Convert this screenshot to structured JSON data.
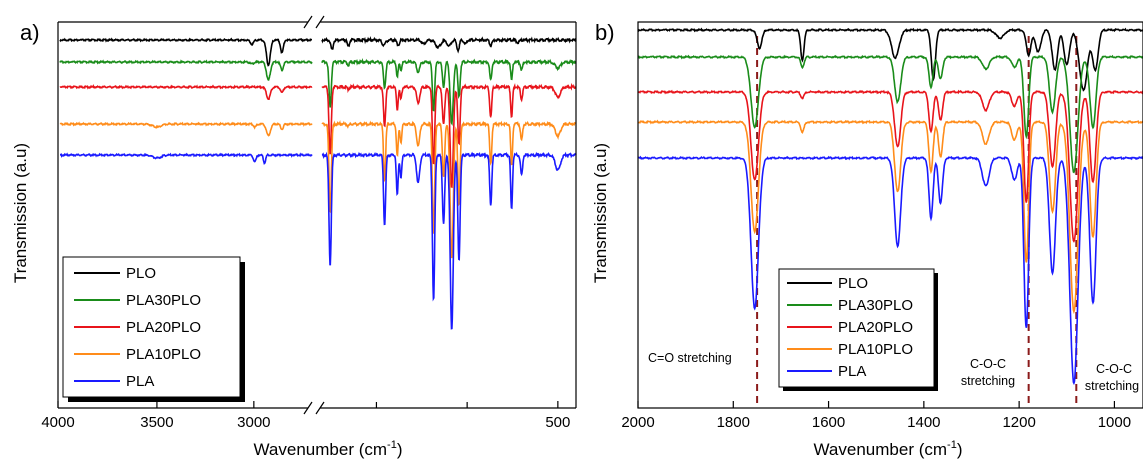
{
  "chart_data": [
    {
      "type": "line",
      "panel_label": "a)",
      "xlabel": "Wavenumber (cm",
      "xlabel_sup": "-1",
      "xlabel_close": ")",
      "ylabel": "Transmission (a.u)",
      "xlim": [
        4000,
        400
      ],
      "axis_break": [
        2700,
        1800
      ],
      "xticks": [
        4000,
        3500,
        3000,
        500
      ],
      "xtick_labels": [
        "4000",
        "3500",
        "3000",
        "500"
      ],
      "minor_ticks_right": [
        1500,
        1000
      ],
      "yticks": "none",
      "legend_position": "bottom-left",
      "series_colors": {
        "PLO": "#000000",
        "PLA30PLO": "#1a8c1a",
        "PLA20PLO": "#e8141b",
        "PLA10PLO": "#ff8c1a",
        "PLA": "#1a1aff"
      },
      "series": [
        {
          "name": "PLO",
          "offset": 0,
          "bands": [
            [
              3010,
              4,
              12
            ],
            [
              2925,
              25,
              14
            ],
            [
              2855,
              13,
              10
            ],
            [
              1745,
              10,
              9
            ],
            [
              1655,
              7,
              8
            ],
            [
              1460,
              5,
              14
            ],
            [
              1380,
              5,
              10
            ],
            [
              1240,
              4,
              15
            ],
            [
              1160,
              7,
              20
            ],
            [
              1100,
              6,
              15
            ],
            [
              1050,
              10,
              10
            ],
            [
              1010,
              4,
              10
            ],
            [
              870,
              5,
              10
            ],
            [
              720,
              3,
              10
            ]
          ]
        },
        {
          "name": "PLA30PLO",
          "offset": 22,
          "bands": [
            [
              3010,
              2,
              12
            ],
            [
              2925,
              18,
              14
            ],
            [
              2855,
              8,
              10
            ],
            [
              1755,
              45,
              9
            ],
            [
              1655,
              3,
              8
            ],
            [
              1455,
              25,
              9
            ],
            [
              1385,
              14,
              7
            ],
            [
              1365,
              8,
              7
            ],
            [
              1270,
              10,
              12
            ],
            [
              1185,
              48,
              9
            ],
            [
              1130,
              25,
              9
            ],
            [
              1085,
              62,
              12
            ],
            [
              1045,
              35,
              9
            ],
            [
              870,
              18,
              8
            ],
            [
              755,
              18,
              7
            ],
            [
              700,
              8,
              8
            ],
            [
              500,
              6,
              20
            ]
          ]
        },
        {
          "name": "PLA20PLO",
          "offset": 47,
          "bands": [
            [
              2925,
              12,
              14
            ],
            [
              2855,
              6,
              10
            ],
            [
              1755,
              68,
              9
            ],
            [
              1655,
              2,
              8
            ],
            [
              1455,
              40,
              8
            ],
            [
              1385,
              22,
              7
            ],
            [
              1365,
              12,
              7
            ],
            [
              1270,
              16,
              12
            ],
            [
              1185,
              78,
              9
            ],
            [
              1130,
              38,
              9
            ],
            [
              1085,
              100,
              12
            ],
            [
              1045,
              58,
              9
            ],
            [
              870,
              30,
              8
            ],
            [
              755,
              30,
              7
            ],
            [
              700,
              12,
              8
            ],
            [
              500,
              10,
              20
            ]
          ]
        },
        {
          "name": "PLA10PLO",
          "offset": 84,
          "bands": [
            [
              3500,
              3,
              30
            ],
            [
              2995,
              3,
              10
            ],
            [
              2925,
              12,
              14
            ],
            [
              2855,
              5,
              10
            ],
            [
              1755,
              88,
              9
            ],
            [
              1655,
              2,
              8
            ],
            [
              1455,
              56,
              8
            ],
            [
              1385,
              32,
              7
            ],
            [
              1365,
              18,
              7
            ],
            [
              1270,
              22,
              12
            ],
            [
              1185,
              110,
              9
            ],
            [
              1130,
              52,
              9
            ],
            [
              1085,
              135,
              12
            ],
            [
              1045,
              80,
              9
            ],
            [
              870,
              40,
              8
            ],
            [
              755,
              42,
              7
            ],
            [
              700,
              16,
              8
            ],
            [
              500,
              12,
              20
            ]
          ]
        },
        {
          "name": "PLA",
          "offset": 115,
          "bands": [
            [
              3500,
              3,
              30
            ],
            [
              2995,
              7,
              10
            ],
            [
              2945,
              8,
              8
            ],
            [
              1755,
              110,
              9
            ],
            [
              1455,
              70,
              8
            ],
            [
              1385,
              40,
              7
            ],
            [
              1365,
              22,
              7
            ],
            [
              1270,
              28,
              12
            ],
            [
              1185,
              145,
              9
            ],
            [
              1130,
              68,
              9
            ],
            [
              1085,
              175,
              12
            ],
            [
              1045,
              105,
              9
            ],
            [
              870,
              50,
              8
            ],
            [
              755,
              55,
              7
            ],
            [
              700,
              20,
              8
            ],
            [
              500,
              15,
              20
            ]
          ]
        }
      ]
    },
    {
      "type": "line",
      "panel_label": "b)",
      "xlabel": "Wavenumber (cm",
      "xlabel_sup": "-1",
      "xlabel_close": ")",
      "ylabel": "Transmission (a.u)",
      "xlim": [
        2000,
        940
      ],
      "xticks": [
        2000,
        1800,
        1600,
        1400,
        1200,
        1000
      ],
      "xtick_labels": [
        "2000",
        "1800",
        "1600",
        "1400",
        "1200",
        "1000"
      ],
      "yticks": "none",
      "legend_position": "bottom-left",
      "series_colors": {
        "PLO": "#000000",
        "PLA30PLO": "#1a8c1a",
        "PLA20PLO": "#e8141b",
        "PLA10PLO": "#ff8c1a",
        "PLA": "#1a1aff"
      },
      "reference_lines": [
        1750,
        1180,
        1080
      ],
      "reference_line_color": "#8b1a1a",
      "annotations": [
        {
          "text": "C=O stretching",
          "x": 1805,
          "y_pos": "bottom"
        },
        {
          "text": "C-O-C",
          "x": 1220,
          "y_pos": "bottom"
        },
        {
          "text": "stretching",
          "x": 1220,
          "y_pos": "bottom"
        },
        {
          "text": "C-O-C",
          "x": 1020,
          "y_pos": "bottom"
        },
        {
          "text": "stretching",
          "x": 1020,
          "y_pos": "bottom"
        }
      ],
      "series": [
        {
          "name": "PLO",
          "offset": 0,
          "bands": [
            [
              1745,
              18,
              7
            ],
            [
              1655,
              30,
              5
            ],
            [
              1460,
              28,
              11
            ],
            [
              1380,
              50,
              6
            ],
            [
              1240,
              8,
              12
            ],
            [
              1180,
              25,
              7
            ],
            [
              1160,
              22,
              8
            ],
            [
              1125,
              40,
              8
            ],
            [
              1100,
              35,
              8
            ],
            [
              1065,
              60,
              12
            ],
            [
              1040,
              40,
              8
            ]
          ]
        },
        {
          "name": "PLA30PLO",
          "offset": 27,
          "bands": [
            [
              1755,
              70,
              11
            ],
            [
              1655,
              10,
              5
            ],
            [
              1455,
              45,
              9
            ],
            [
              1385,
              30,
              6
            ],
            [
              1365,
              22,
              6
            ],
            [
              1270,
              12,
              10
            ],
            [
              1210,
              10,
              8
            ],
            [
              1185,
              80,
              7
            ],
            [
              1130,
              55,
              9
            ],
            [
              1085,
              115,
              12
            ],
            [
              1045,
              70,
              9
            ]
          ]
        },
        {
          "name": "PLA20PLO",
          "offset": 62,
          "bands": [
            [
              1755,
              88,
              11
            ],
            [
              1655,
              6,
              5
            ],
            [
              1455,
              55,
              9
            ],
            [
              1385,
              40,
              6
            ],
            [
              1365,
              28,
              6
            ],
            [
              1270,
              18,
              10
            ],
            [
              1210,
              14,
              8
            ],
            [
              1185,
              110,
              7
            ],
            [
              1130,
              75,
              9
            ],
            [
              1085,
              150,
              12
            ],
            [
              1045,
              90,
              9
            ]
          ]
        },
        {
          "name": "PLA10PLO",
          "offset": 92,
          "bands": [
            [
              1755,
              110,
              11
            ],
            [
              1655,
              10,
              5
            ],
            [
              1455,
              70,
              9
            ],
            [
              1385,
              50,
              6
            ],
            [
              1365,
              35,
              6
            ],
            [
              1270,
              22,
              10
            ],
            [
              1210,
              18,
              8
            ],
            [
              1185,
              140,
              7
            ],
            [
              1130,
              90,
              9
            ],
            [
              1085,
              190,
              12
            ],
            [
              1045,
              115,
              9
            ]
          ]
        },
        {
          "name": "PLA",
          "offset": 128,
          "bands": [
            [
              1755,
              150,
              11
            ],
            [
              1455,
              88,
              9
            ],
            [
              1385,
              60,
              6
            ],
            [
              1365,
              45,
              6
            ],
            [
              1270,
              28,
              10
            ],
            [
              1210,
              22,
              8
            ],
            [
              1185,
              170,
              7
            ],
            [
              1130,
              115,
              9
            ],
            [
              1085,
              225,
              12
            ],
            [
              1045,
              145,
              9
            ]
          ]
        }
      ]
    }
  ]
}
